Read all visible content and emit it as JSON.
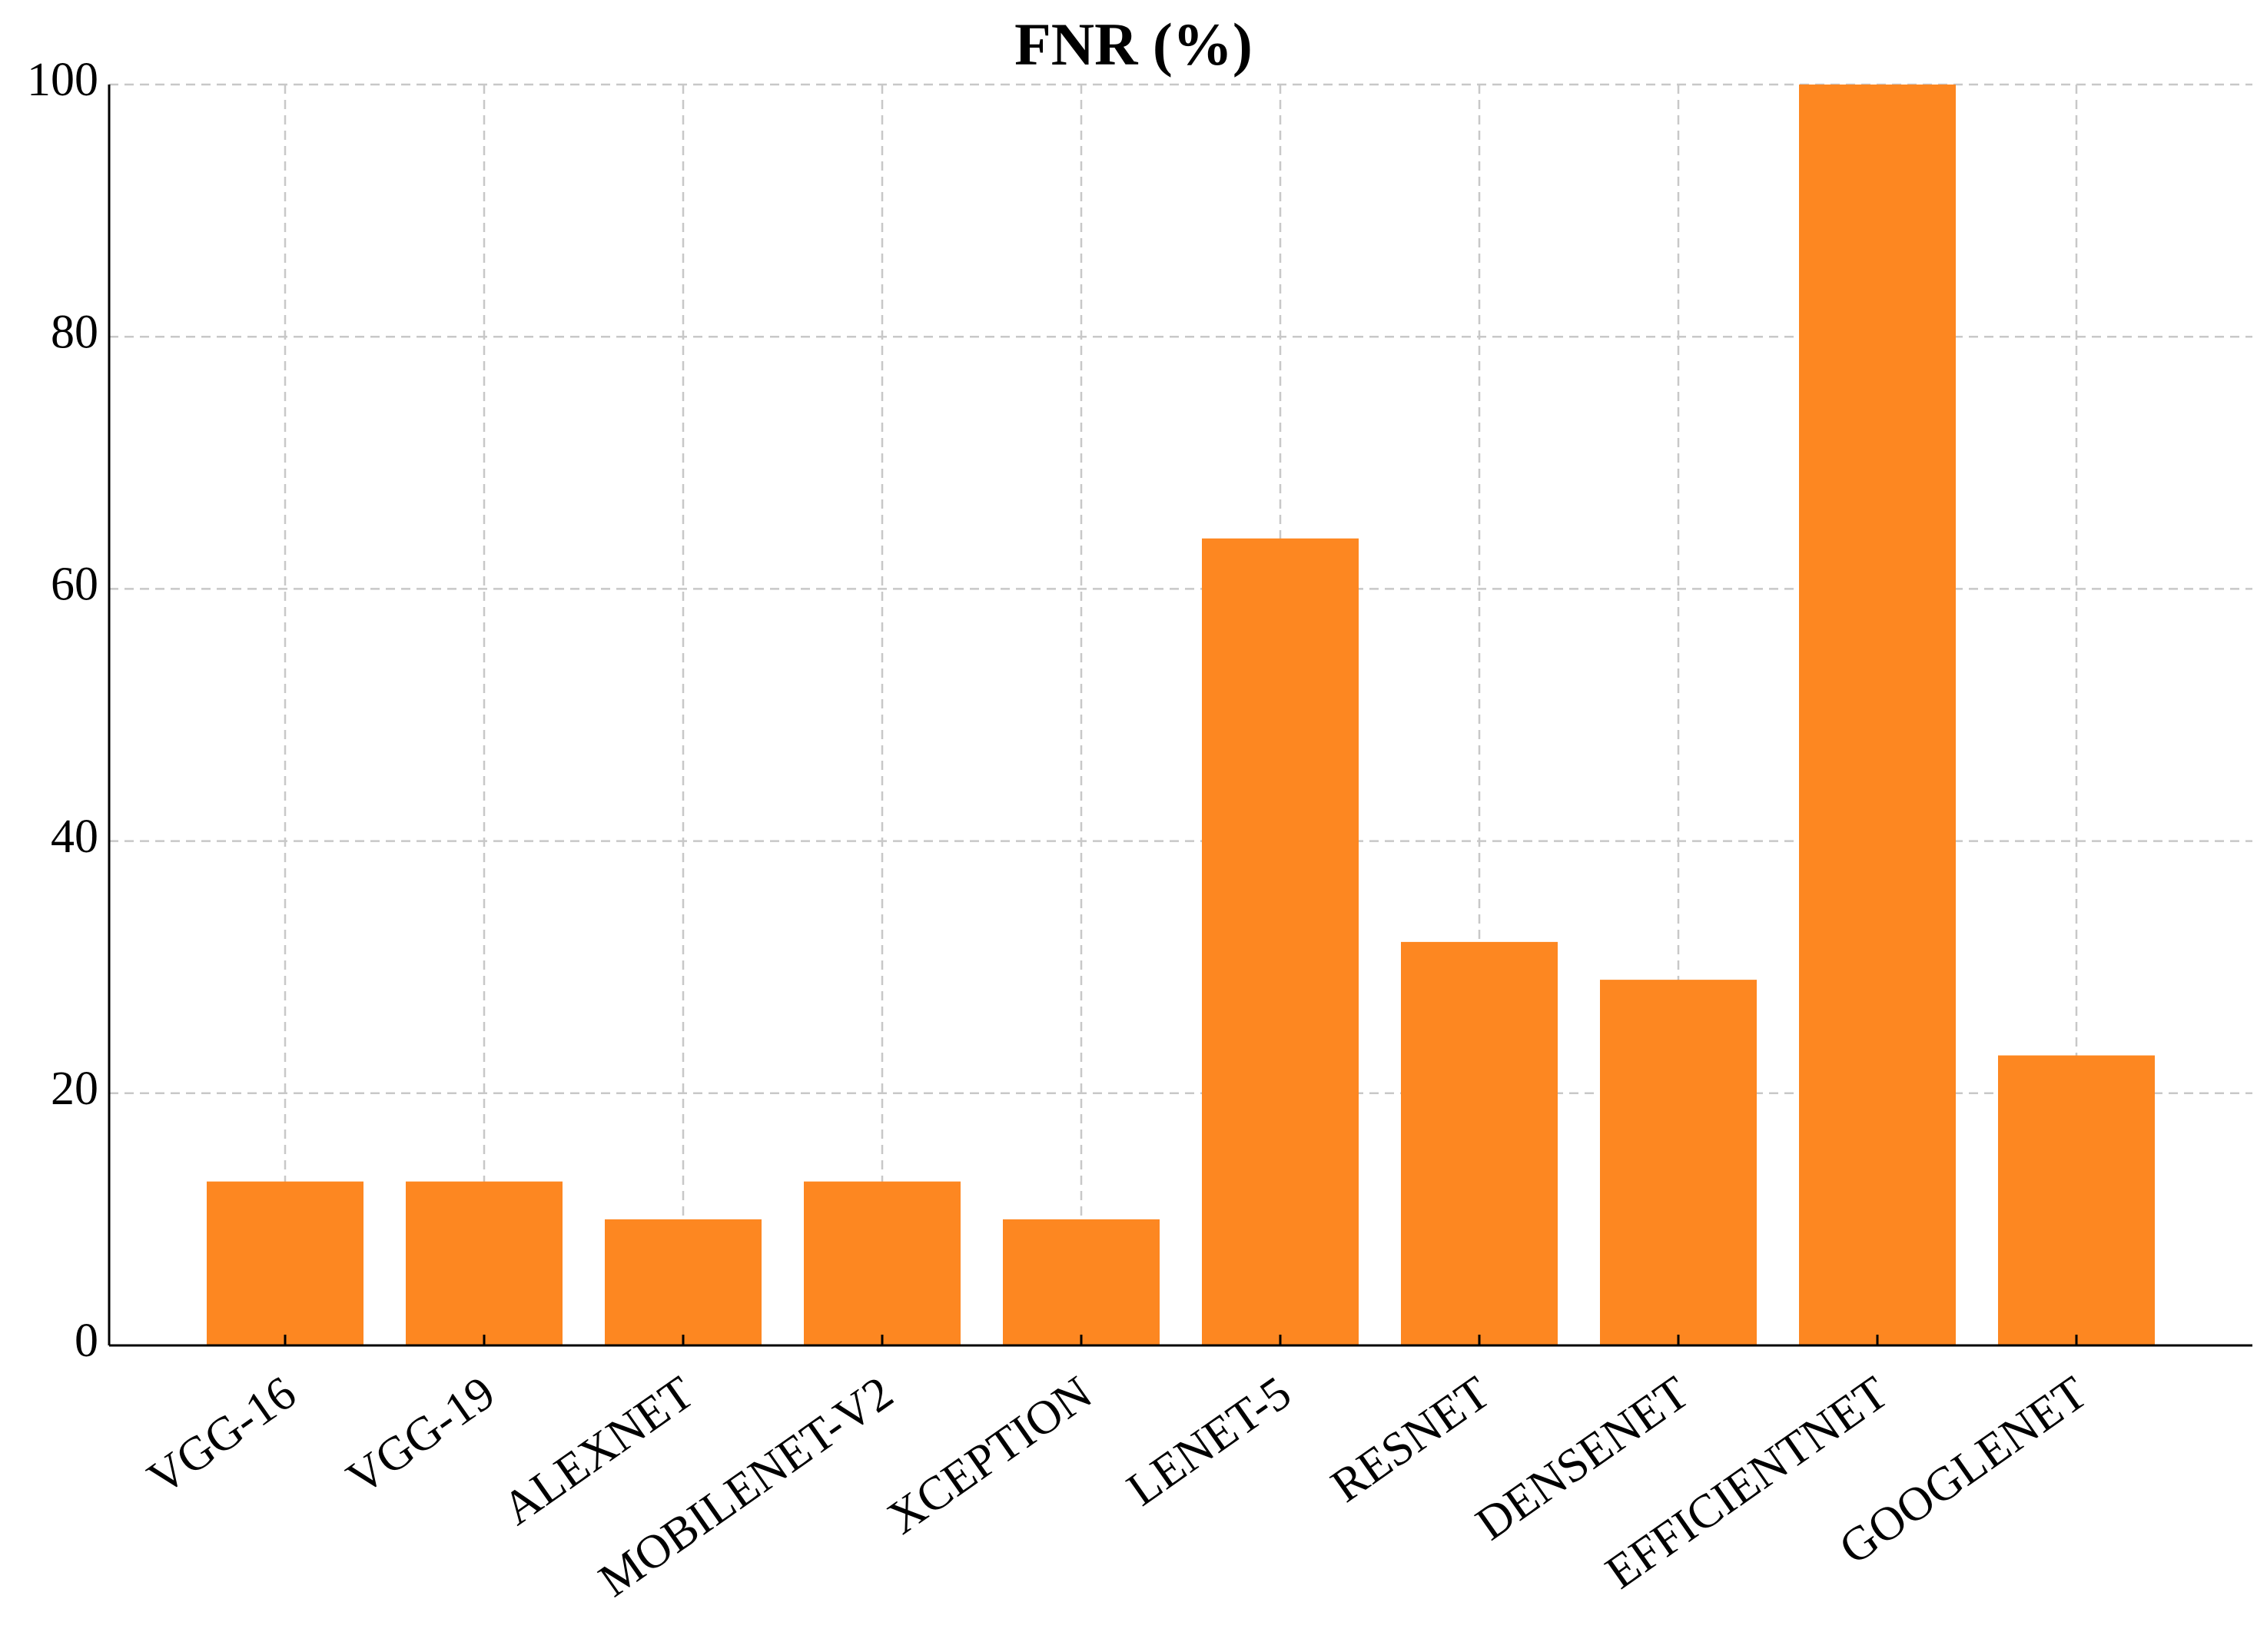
{
  "chart_data": {
    "type": "bar",
    "title": "FNR (%)",
    "categories": [
      "VGG-16",
      "VGG-19",
      "ALEXNET",
      "MOBILENET-V2",
      "XCEPTION",
      "LENET-5",
      "RESNET",
      "DENSENET",
      "EFFICIENTNET",
      "GOOGLENET"
    ],
    "values": [
      13,
      13,
      10,
      13,
      10,
      64,
      32,
      29,
      100,
      23
    ],
    "color": "#fd8721",
    "ylim": [
      0,
      100
    ],
    "yticks": [
      0,
      20,
      40,
      60,
      80,
      100
    ],
    "grid": true
  }
}
